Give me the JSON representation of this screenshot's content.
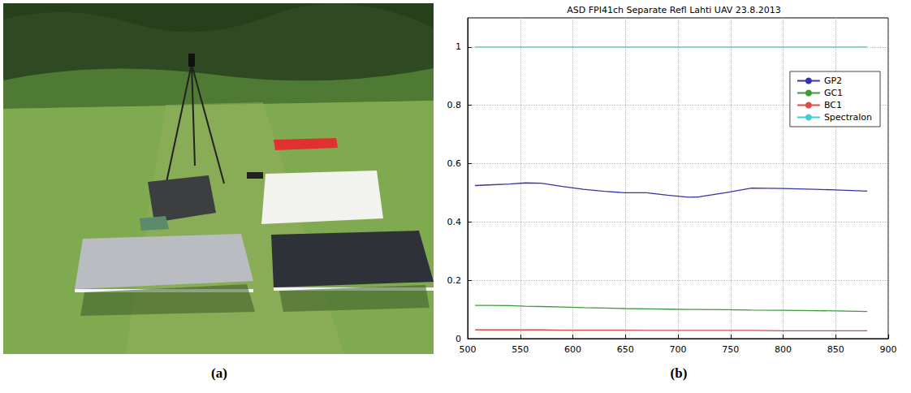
{
  "panel_labels": [
    "(a)",
    "(b)"
  ],
  "chart_data": {
    "type": "line",
    "title": "ASD FPI41ch Separate Refl Lahti UAV 23.8.2013",
    "x": [
      507,
      520,
      540,
      555,
      570,
      590,
      610,
      630,
      650,
      670,
      690,
      710,
      720,
      745,
      770,
      800,
      830,
      850,
      880
    ],
    "series": [
      {
        "name": "GP2",
        "color": "#3535a8",
        "values": [
          0.525,
          0.527,
          0.53,
          0.534,
          0.533,
          0.522,
          0.512,
          0.505,
          0.5,
          0.5,
          0.492,
          0.485,
          0.486,
          0.5,
          0.516,
          0.515,
          0.512,
          0.51,
          0.506
        ]
      },
      {
        "name": "GC1",
        "color": "#3c9a3c",
        "values": [
          0.114,
          0.114,
          0.113,
          0.111,
          0.11,
          0.108,
          0.106,
          0.105,
          0.103,
          0.102,
          0.101,
          0.1,
          0.1,
          0.099,
          0.098,
          0.097,
          0.096,
          0.095,
          0.093
        ]
      },
      {
        "name": "BC1",
        "color": "#e04848",
        "values": [
          0.03,
          0.03,
          0.03,
          0.03,
          0.03,
          0.029,
          0.029,
          0.029,
          0.029,
          0.028,
          0.028,
          0.028,
          0.028,
          0.028,
          0.028,
          0.027,
          0.027,
          0.027,
          0.027
        ]
      },
      {
        "name": "Spectralon",
        "color": "#3fcfcf",
        "values": [
          1,
          1,
          1,
          1,
          1,
          1,
          1,
          1,
          1,
          1,
          1,
          1,
          1,
          1,
          1,
          1,
          1,
          1,
          1
        ]
      }
    ],
    "xlim": [
      500,
      900
    ],
    "xticks": [
      500,
      550,
      600,
      650,
      700,
      750,
      800,
      850,
      900
    ],
    "ylim": [
      0,
      1.1
    ],
    "yticks": [
      0,
      0.2,
      0.4,
      0.6,
      0.8,
      1
    ],
    "grid": true,
    "legend": "upper right"
  }
}
